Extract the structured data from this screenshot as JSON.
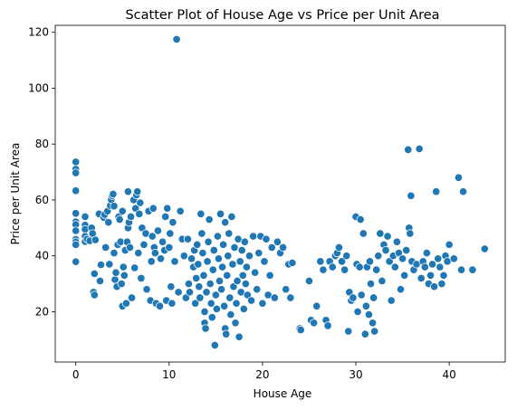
{
  "chart_data": {
    "type": "scatter",
    "title": "Scatter Plot of House Age vs Price per Unit Area",
    "xlabel": "House Age",
    "ylabel": "Price per Unit Area",
    "xlim": [
      -2.2,
      46.0
    ],
    "ylim": [
      2.0,
      122.5
    ],
    "xticks": [
      0,
      10,
      20,
      30,
      40
    ],
    "yticks": [
      20,
      40,
      60,
      80,
      100,
      120
    ],
    "grid": false,
    "point_color": "#1f77b4",
    "series": [
      {
        "points": [
          [
            0.0,
            73.6
          ],
          [
            0.0,
            71.0
          ],
          [
            0.0,
            69.7
          ],
          [
            0.0,
            63.3
          ],
          [
            0.0,
            55.2
          ],
          [
            0.0,
            52.2
          ],
          [
            0.0,
            51.2
          ],
          [
            0.0,
            49.0
          ],
          [
            0.0,
            45.9
          ],
          [
            0.0,
            45.0
          ],
          [
            0.0,
            44.0
          ],
          [
            0.0,
            37.9
          ],
          [
            1.0,
            54.0
          ],
          [
            1.0,
            51.0
          ],
          [
            1.0,
            49.5
          ],
          [
            1.0,
            47.0
          ],
          [
            1.0,
            45.1
          ],
          [
            1.2,
            46.0
          ],
          [
            1.5,
            45.4
          ],
          [
            1.7,
            50.0
          ],
          [
            1.8,
            48.0
          ],
          [
            1.9,
            27.0
          ],
          [
            2.0,
            26.0
          ],
          [
            2.0,
            33.6
          ],
          [
            2.1,
            45.7
          ],
          [
            2.5,
            55.0
          ],
          [
            2.6,
            31.0
          ],
          [
            2.7,
            36.8
          ],
          [
            3.0,
            53.7
          ],
          [
            3.1,
            54.8
          ],
          [
            3.2,
            43.0
          ],
          [
            3.4,
            56.0
          ],
          [
            3.5,
            52.0
          ],
          [
            3.6,
            37.0
          ],
          [
            3.7,
            58.0
          ],
          [
            3.8,
            60.1
          ],
          [
            3.9,
            61.5
          ],
          [
            4.0,
            62.1
          ],
          [
            4.1,
            57.8
          ],
          [
            4.1,
            41.0
          ],
          [
            4.2,
            31.5
          ],
          [
            4.3,
            34.0
          ],
          [
            4.4,
            29.0
          ],
          [
            4.5,
            44.0
          ],
          [
            4.6,
            54.0
          ],
          [
            4.7,
            53.0
          ],
          [
            4.8,
            45.0
          ],
          [
            4.9,
            30.0
          ],
          [
            5.0,
            22.0
          ],
          [
            5.0,
            56.0
          ],
          [
            5.1,
            36.0
          ],
          [
            5.2,
            33.0
          ],
          [
            5.3,
            42.0
          ],
          [
            5.4,
            23.0
          ],
          [
            5.5,
            45.0
          ],
          [
            5.6,
            50.0
          ],
          [
            5.6,
            63.0
          ],
          [
            5.7,
            52.0
          ],
          [
            5.8,
            43.0
          ],
          [
            5.9,
            54.0
          ],
          [
            6.0,
            25.0
          ],
          [
            6.2,
            60.0
          ],
          [
            6.3,
            35.7
          ],
          [
            6.4,
            57.0
          ],
          [
            6.5,
            61.8
          ],
          [
            6.6,
            63.0
          ],
          [
            6.7,
            41.0
          ],
          [
            6.8,
            55.0
          ],
          [
            6.9,
            59.0
          ],
          [
            7.0,
            32.0
          ],
          [
            7.1,
            50.0
          ],
          [
            7.3,
            44.0
          ],
          [
            7.5,
            48.0
          ],
          [
            7.6,
            28.0
          ],
          [
            7.8,
            56.0
          ],
          [
            8.0,
            24.0
          ],
          [
            8.1,
            38.0
          ],
          [
            8.2,
            47.0
          ],
          [
            8.3,
            57.0
          ],
          [
            8.4,
            43.0
          ],
          [
            8.5,
            41.0
          ],
          [
            8.6,
            23.0
          ],
          [
            8.8,
            49.0
          ],
          [
            9.0,
            22.0
          ],
          [
            9.1,
            39.0
          ],
          [
            9.3,
            45.0
          ],
          [
            9.5,
            42.0
          ],
          [
            9.6,
            54.0
          ],
          [
            9.7,
            24.0
          ],
          [
            9.8,
            57.0
          ],
          [
            10.0,
            43.0
          ],
          [
            10.1,
            48.0
          ],
          [
            10.2,
            29.0
          ],
          [
            10.3,
            23.0
          ],
          [
            10.4,
            52.0
          ],
          [
            10.6,
            38.0
          ],
          [
            10.8,
            117.5
          ],
          [
            11.0,
            27.0
          ],
          [
            11.2,
            56.0
          ],
          [
            11.4,
            46.0
          ],
          [
            11.6,
            40.0
          ],
          [
            11.8,
            25.0
          ],
          [
            12.0,
            46.0
          ],
          [
            12.1,
            30.0
          ],
          [
            12.2,
            27.0
          ],
          [
            12.4,
            39.0
          ],
          [
            12.6,
            36.0
          ],
          [
            12.7,
            42.0
          ],
          [
            12.8,
            23.0
          ],
          [
            12.9,
            32.0
          ],
          [
            13.0,
            44.0
          ],
          [
            13.1,
            37.0
          ],
          [
            13.2,
            29.0
          ],
          [
            13.3,
            25.0
          ],
          [
            13.4,
            55.0
          ],
          [
            13.5,
            48.0
          ],
          [
            13.6,
            41.0
          ],
          [
            13.7,
            33.0
          ],
          [
            13.8,
            20.0
          ],
          [
            13.8,
            16.0
          ],
          [
            13.9,
            14.0
          ],
          [
            14.0,
            27.0
          ],
          [
            14.1,
            38.0
          ],
          [
            14.2,
            45.0
          ],
          [
            14.3,
            53.0
          ],
          [
            14.4,
            30.0
          ],
          [
            14.5,
            23.0
          ],
          [
            14.6,
            18.0
          ],
          [
            14.7,
            35.0
          ],
          [
            14.8,
            42.0
          ],
          [
            14.9,
            8.0
          ],
          [
            15.0,
            26.0
          ],
          [
            15.1,
            21.0
          ],
          [
            15.2,
            47.0
          ],
          [
            15.3,
            39.0
          ],
          [
            15.4,
            31.0
          ],
          [
            15.5,
            55.0
          ],
          [
            15.6,
            28.0
          ],
          [
            15.7,
            36.0
          ],
          [
            15.8,
            44.0
          ],
          [
            15.9,
            22.0
          ],
          [
            16.0,
            52.0
          ],
          [
            16.0,
            14.0
          ],
          [
            16.1,
            12.0
          ],
          [
            16.2,
            33.0
          ],
          [
            16.3,
            40.0
          ],
          [
            16.4,
            48.0
          ],
          [
            16.5,
            25.0
          ],
          [
            16.6,
            19.0
          ],
          [
            16.7,
            54.0
          ],
          [
            16.8,
            37.0
          ],
          [
            16.9,
            29.0
          ],
          [
            17.0,
            43.0
          ],
          [
            17.1,
            16.0
          ],
          [
            17.2,
            23.0
          ],
          [
            17.3,
            31.0
          ],
          [
            17.4,
            46.0
          ],
          [
            17.5,
            11.0
          ],
          [
            17.6,
            38.0
          ],
          [
            17.7,
            27.0
          ],
          [
            17.8,
            42.0
          ],
          [
            17.9,
            33.0
          ],
          [
            18.0,
            21.0
          ],
          [
            18.1,
            45.0
          ],
          [
            18.2,
            30.0
          ],
          [
            18.3,
            36.0
          ],
          [
            18.4,
            26.0
          ],
          [
            18.6,
            40.0
          ],
          [
            18.8,
            24.0
          ],
          [
            19.0,
            47.0
          ],
          [
            19.2,
            34.0
          ],
          [
            19.4,
            28.0
          ],
          [
            19.6,
            41.0
          ],
          [
            19.8,
            47.0
          ],
          [
            20.0,
            23.0
          ],
          [
            20.2,
            38.0
          ],
          [
            20.4,
            46.0
          ],
          [
            20.6,
            26.0
          ],
          [
            20.8,
            33.0
          ],
          [
            21.0,
            43.0
          ],
          [
            21.3,
            25.0
          ],
          [
            21.6,
            45.0
          ],
          [
            21.9,
            41.0
          ],
          [
            22.2,
            43.0
          ],
          [
            22.5,
            28.0
          ],
          [
            22.8,
            37.0
          ],
          [
            23.0,
            25.0
          ],
          [
            23.2,
            37.5
          ],
          [
            24.0,
            14.0
          ],
          [
            24.1,
            13.5
          ],
          [
            25.0,
            31.0
          ],
          [
            25.2,
            17.0
          ],
          [
            25.5,
            16.0
          ],
          [
            25.8,
            22.0
          ],
          [
            26.2,
            38.0
          ],
          [
            26.5,
            35.0
          ],
          [
            26.8,
            17.0
          ],
          [
            27.0,
            15.0
          ],
          [
            27.2,
            38.0
          ],
          [
            27.5,
            36.0
          ],
          [
            27.8,
            40.0
          ],
          [
            28.0,
            41.0
          ],
          [
            28.2,
            43.0
          ],
          [
            28.5,
            38.0
          ],
          [
            28.8,
            35.0
          ],
          [
            29.0,
            40.0
          ],
          [
            29.2,
            13.0
          ],
          [
            29.3,
            27.0
          ],
          [
            29.5,
            24.0
          ],
          [
            29.7,
            25.0
          ],
          [
            30.0,
            54.0
          ],
          [
            30.1,
            37.0
          ],
          [
            30.2,
            20.0
          ],
          [
            30.4,
            36.0
          ],
          [
            30.5,
            53.0
          ],
          [
            30.6,
            26.0
          ],
          [
            30.8,
            48.0
          ],
          [
            31.0,
            12.0
          ],
          [
            31.1,
            22.0
          ],
          [
            31.2,
            36.0
          ],
          [
            31.4,
            19.0
          ],
          [
            31.5,
            38.0
          ],
          [
            31.6,
            30.0
          ],
          [
            31.8,
            16.0
          ],
          [
            31.9,
            25.0
          ],
          [
            32.0,
            13.0
          ],
          [
            32.2,
            35.0
          ],
          [
            32.4,
            40.0
          ],
          [
            32.6,
            48.0
          ],
          [
            32.8,
            31.0
          ],
          [
            33.0,
            44.0
          ],
          [
            33.2,
            42.0
          ],
          [
            33.4,
            47.0
          ],
          [
            33.6,
            38.0
          ],
          [
            33.8,
            24.0
          ],
          [
            34.0,
            40.0
          ],
          [
            34.2,
            36.0
          ],
          [
            34.4,
            45.0
          ],
          [
            34.6,
            41.0
          ],
          [
            34.8,
            28.0
          ],
          [
            35.0,
            39.0
          ],
          [
            35.2,
            33.0
          ],
          [
            35.4,
            42.0
          ],
          [
            35.6,
            78.0
          ],
          [
            35.7,
            50.0
          ],
          [
            35.8,
            48.0
          ],
          [
            35.9,
            61.5
          ],
          [
            36.0,
            38.0
          ],
          [
            36.2,
            35.0
          ],
          [
            36.5,
            37.0
          ],
          [
            36.8,
            78.3
          ],
          [
            37.0,
            32.0
          ],
          [
            37.2,
            38.0
          ],
          [
            37.4,
            36.0
          ],
          [
            37.6,
            41.0
          ],
          [
            37.8,
            30.0
          ],
          [
            38.0,
            33.0
          ],
          [
            38.2,
            37.0
          ],
          [
            38.4,
            29.0
          ],
          [
            38.6,
            63.0
          ],
          [
            38.8,
            39.0
          ],
          [
            39.0,
            36.0
          ],
          [
            39.2,
            30.0
          ],
          [
            39.4,
            33.0
          ],
          [
            39.6,
            40.0
          ],
          [
            39.8,
            38.0
          ],
          [
            40.0,
            44.0
          ],
          [
            40.5,
            39.0
          ],
          [
            41.0,
            68.0
          ],
          [
            41.3,
            35.0
          ],
          [
            41.5,
            63.0
          ],
          [
            42.5,
            35.0
          ],
          [
            43.8,
            42.5
          ]
        ]
      }
    ]
  }
}
